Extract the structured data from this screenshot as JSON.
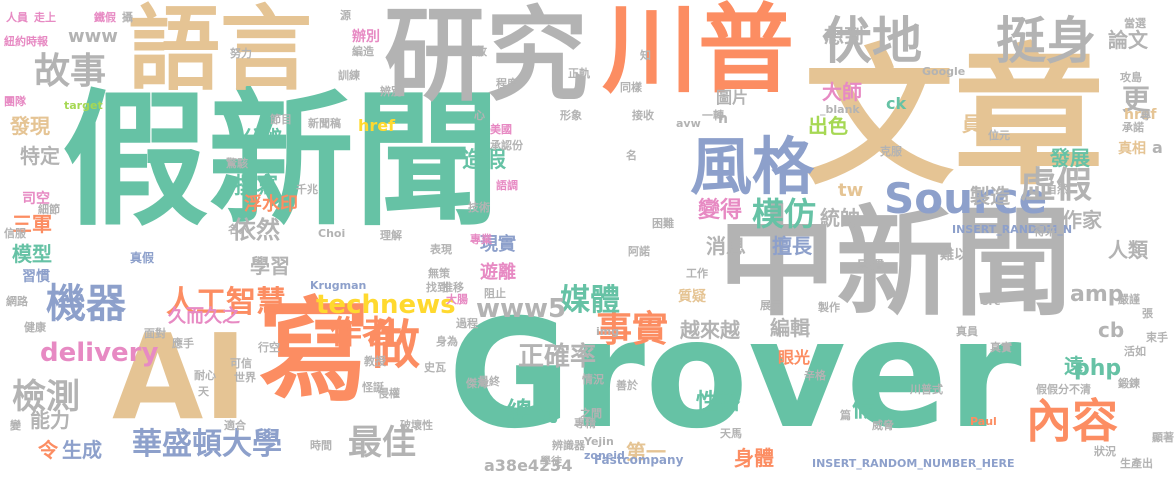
{
  "palette": {
    "green": "#66c2a5",
    "orange": "#fc8d62",
    "blue": "#8da0cb",
    "pink": "#e78ac3",
    "lime": "#a6d854",
    "yellow": "#ffd92f",
    "tan": "#e5c494",
    "gray": "#b3b3b3"
  },
  "words": [
    "假新聞",
    "文章",
    "Grover",
    "中新聞",
    "AI",
    "寫",
    "語言",
    "研究",
    "川普",
    "風格",
    "伏地",
    "挺身",
    "故事",
    "Source",
    "虛假",
    "機器",
    "做",
    "內容",
    "事實",
    "人工智慧",
    "華盛頓大學",
    "檢測",
    "最佳",
    "模仿",
    "technews",
    "delivery",
    "作者",
    "正確率",
    "總統",
    "媒體",
    "www5",
    "amp",
    "php",
    "模型",
    "三軍",
    "發現",
    "特定",
    "分辨",
    "撰寫",
    "造假",
    "依然",
    "學習",
    "浮水印",
    "出色",
    "統帥",
    "變得",
    "製造",
    "發展",
    "作家",
    "人類",
    "cb",
    "論文",
    "更",
    "大師",
    "想到",
    "www",
    "tw",
    "擅長",
    "消息",
    "現實",
    "遊離",
    "越來越",
    "編輯",
    "性格",
    "第一",
    "身體",
    "遠",
    "能力",
    "生成",
    "令",
    "a38e4234",
    "眼光",
    "假",
    "員",
    "見慣",
    "圖片",
    "href",
    "href",
    "Fastcompany",
    "zoneid",
    "INSERT_RANDOM_NUMBER_HERE",
    "INSERT_RANDOM_N",
    "Krugman",
    "target",
    "_blank",
    "Google",
    "Paul",
    "ck",
    "img",
    "src",
    "Yejin",
    "Choi",
    "avw",
    "n",
    "真相",
    "難以",
    "質疑",
    "久而久之",
    "習慣",
    "司空",
    "真假",
    "辦別",
    "川普式",
    "假假分不清",
    "阿諾",
    "困難",
    "專業",
    "技術",
    "語調",
    "承認",
    "美國",
    "份",
    "名",
    "過程",
    "阻止",
    "推移",
    "大腸",
    "傑海",
    "之間",
    "專精",
    "辨識器",
    "學徒",
    "天馬",
    "善於",
    "情況",
    "顯著",
    "侵權",
    "教授",
    "史瓦",
    "世界",
    "耐心",
    "行空",
    "面對",
    "健康",
    "網路",
    "可信",
    "天",
    "信服",
    "細節",
    "名人",
    "驚駭",
    "千兆",
    "節目",
    "新聞稿",
    "辨別",
    "程度",
    "正軌",
    "心",
    "放",
    "同樣",
    "一轉",
    "知",
    "攻島",
    "當選",
    "紐約時報",
    "人員",
    "走上",
    "鐵假",
    "攝",
    "源",
    "編造",
    "努力",
    "訓練",
    "形象",
    "接收",
    "展示",
    "製作",
    "嚴謹",
    "鍛鍊",
    "生產出",
    "狀況",
    "威脅",
    "真實",
    "真員",
    "克服",
    "位元",
    "得來",
    "自然",
    "活如",
    "束手",
    "張",
    "專",
    "承諾",
    "辛格",
    "篇",
    "破壞性",
    "時間",
    "適合",
    "變",
    "應手",
    "團隊",
    "表現",
    "無策",
    "理解",
    "找到",
    "工作",
    "身為",
    "最終",
    "怪誕",
    "a"
  ]
}
